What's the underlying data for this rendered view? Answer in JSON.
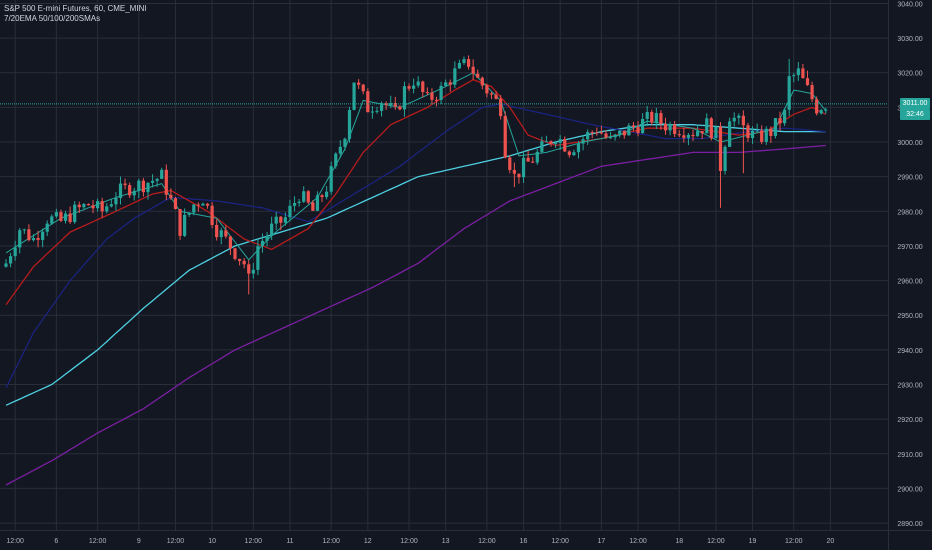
{
  "legend": {
    "title": "S&P 500 E-mini Futures, 60, CME_MINI",
    "indicators": "7/20EMA 50/100/200SMAs"
  },
  "price_tags": {
    "last": "3011.00",
    "countdown": "32:46"
  },
  "colors": {
    "background": "#131722",
    "grid": "#2a2e39",
    "up": "#26a69a",
    "down": "#ef5350",
    "ema7": "#26a69a",
    "ema20": "#b71c1c",
    "sma50": "#1a237e",
    "sma100": "#4dd0e1",
    "sma200": "#7b1fa2",
    "last_price_line": "#26a69a"
  },
  "chart_data": {
    "type": "candlestick",
    "title": "S&P 500 E-mini Futures, 60, CME_MINI",
    "indicators_label": "7/20EMA 50/100/200SMAs",
    "y_ticks": [
      2890,
      2900,
      2910,
      2920,
      2930,
      2940,
      2950,
      2960,
      2970,
      2980,
      2990,
      3000,
      3010,
      3020,
      3030,
      3040
    ],
    "y_tick_labels": [
      "2890.00",
      "2900.00",
      "2910.00",
      "2920.00",
      "2930.00",
      "2940.00",
      "2950.00",
      "2960.00",
      "2970.00",
      "2980.00",
      "2990.00",
      "3000.00",
      "3010.00",
      "3020.00",
      "3030.00",
      "3040.00"
    ],
    "ylim": [
      2888,
      3041
    ],
    "x_ticks": [
      {
        "i": 2,
        "label": "12:00"
      },
      {
        "i": 11,
        "label": "6"
      },
      {
        "i": 20,
        "label": "12:00"
      },
      {
        "i": 29,
        "label": "9"
      },
      {
        "i": 37,
        "label": "12:00"
      },
      {
        "i": 45,
        "label": "10"
      },
      {
        "i": 54,
        "label": "12:00"
      },
      {
        "i": 62,
        "label": "11"
      },
      {
        "i": 71,
        "label": "12:00"
      },
      {
        "i": 79,
        "label": "12"
      },
      {
        "i": 88,
        "label": "12:00"
      },
      {
        "i": 96,
        "label": "13"
      },
      {
        "i": 105,
        "label": "12:00"
      },
      {
        "i": 113,
        "label": "16"
      },
      {
        "i": 121,
        "label": "12:00"
      },
      {
        "i": 130,
        "label": "17"
      },
      {
        "i": 138,
        "label": "12:00"
      },
      {
        "i": 147,
        "label": "18"
      },
      {
        "i": 155,
        "label": "12:00"
      },
      {
        "i": 163,
        "label": "19"
      },
      {
        "i": 172,
        "label": "12:00"
      },
      {
        "i": 180,
        "label": "20"
      }
    ],
    "last_price": 3011.0,
    "candle_anchors": [
      [
        0,
        2965
      ],
      [
        3,
        2975
      ],
      [
        6,
        2972
      ],
      [
        9,
        2978
      ],
      [
        12,
        2977
      ],
      [
        15,
        2980
      ],
      [
        18,
        2982
      ],
      [
        21,
        2980
      ],
      [
        24,
        2985
      ],
      [
        27,
        2987
      ],
      [
        30,
        2988
      ],
      [
        34,
        2990
      ],
      [
        36,
        2983
      ],
      [
        38,
        2975
      ],
      [
        41,
        2982
      ],
      [
        43,
        2984
      ],
      [
        46,
        2975
      ],
      [
        49,
        2970
      ],
      [
        52,
        2965
      ],
      [
        53,
        2960
      ],
      [
        55,
        2970
      ],
      [
        58,
        2975
      ],
      [
        61,
        2978
      ],
      [
        64,
        2985
      ],
      [
        67,
        2980
      ],
      [
        70,
        2987
      ],
      [
        72,
        2995
      ],
      [
        74,
        3003
      ],
      [
        76,
        3018
      ],
      [
        79,
        3010
      ],
      [
        82,
        3012
      ],
      [
        85,
        3008
      ],
      [
        87,
        3015
      ],
      [
        89,
        3018
      ],
      [
        92,
        3012
      ],
      [
        95,
        3015
      ],
      [
        98,
        3020
      ],
      [
        101,
        3023
      ],
      [
        103,
        3018
      ],
      [
        105,
        3015
      ],
      [
        108,
        3010
      ],
      [
        109,
        2998
      ],
      [
        111,
        2990
      ],
      [
        113,
        2993
      ],
      [
        115,
        2995
      ],
      [
        117,
        2998
      ],
      [
        120,
        3002
      ],
      [
        123,
        2998
      ],
      [
        126,
        3001
      ],
      [
        129,
        3004
      ],
      [
        132,
        3000
      ],
      [
        135,
        3003
      ],
      [
        138,
        3005
      ],
      [
        141,
        3007
      ],
      [
        144,
        3005
      ],
      [
        147,
        3004
      ],
      [
        150,
        3003
      ],
      [
        153,
        3005
      ],
      [
        155,
        3002
      ],
      [
        156,
        2993
      ],
      [
        158,
        3008
      ],
      [
        161,
        3004
      ],
      [
        164,
        3001
      ],
      [
        167,
        3003
      ],
      [
        170,
        3008
      ],
      [
        171,
        3018
      ],
      [
        173,
        3020
      ],
      [
        175,
        3015
      ],
      [
        177,
        3010
      ],
      [
        179,
        3011
      ]
    ],
    "candles": [],
    "ema7_anchors": [
      [
        0,
        2968
      ],
      [
        12,
        2978
      ],
      [
        24,
        2984
      ],
      [
        34,
        2988
      ],
      [
        38,
        2980
      ],
      [
        46,
        2978
      ],
      [
        53,
        2966
      ],
      [
        58,
        2973
      ],
      [
        68,
        2984
      ],
      [
        74,
        2998
      ],
      [
        78,
        3012
      ],
      [
        86,
        3010
      ],
      [
        96,
        3016
      ],
      [
        102,
        3020
      ],
      [
        108,
        3012
      ],
      [
        112,
        2996
      ],
      [
        118,
        2997
      ],
      [
        126,
        3000
      ],
      [
        134,
        3002
      ],
      [
        140,
        3006
      ],
      [
        150,
        3004
      ],
      [
        156,
        3000
      ],
      [
        162,
        3002
      ],
      [
        168,
        3004
      ],
      [
        172,
        3015
      ],
      [
        176,
        3014
      ],
      [
        179,
        3009
      ]
    ],
    "ema20_anchors": [
      [
        0,
        2953
      ],
      [
        6,
        2964
      ],
      [
        14,
        2974
      ],
      [
        24,
        2980
      ],
      [
        32,
        2985
      ],
      [
        36,
        2986
      ],
      [
        44,
        2980
      ],
      [
        52,
        2972
      ],
      [
        58,
        2969
      ],
      [
        66,
        2975
      ],
      [
        72,
        2985
      ],
      [
        78,
        2997
      ],
      [
        84,
        3005
      ],
      [
        92,
        3010
      ],
      [
        98,
        3015
      ],
      [
        102,
        3018
      ],
      [
        106,
        3016
      ],
      [
        110,
        3010
      ],
      [
        114,
        3002
      ],
      [
        120,
        2999
      ],
      [
        130,
        3001
      ],
      [
        140,
        3004
      ],
      [
        150,
        3004
      ],
      [
        160,
        3002
      ],
      [
        166,
        3003
      ],
      [
        172,
        3008
      ],
      [
        176,
        3010
      ],
      [
        179,
        3008
      ]
    ],
    "sma50_anchors": [
      [
        0,
        2929
      ],
      [
        6,
        2945
      ],
      [
        14,
        2960
      ],
      [
        22,
        2972
      ],
      [
        28,
        2978
      ],
      [
        36,
        2984
      ],
      [
        46,
        2983
      ],
      [
        56,
        2981
      ],
      [
        66,
        2977
      ],
      [
        76,
        2985
      ],
      [
        86,
        2993
      ],
      [
        96,
        3003
      ],
      [
        104,
        3010
      ],
      [
        108,
        3011
      ],
      [
        118,
        3008
      ],
      [
        128,
        3005
      ],
      [
        136,
        3003
      ],
      [
        144,
        3001
      ],
      [
        152,
        3001
      ],
      [
        162,
        3003
      ],
      [
        170,
        3004
      ],
      [
        179,
        3003
      ]
    ],
    "sma100_anchors": [
      [
        0,
        2924
      ],
      [
        10,
        2930
      ],
      [
        20,
        2940
      ],
      [
        30,
        2952
      ],
      [
        40,
        2963
      ],
      [
        50,
        2970
      ],
      [
        60,
        2974
      ],
      [
        70,
        2978
      ],
      [
        80,
        2984
      ],
      [
        90,
        2990
      ],
      [
        100,
        2993
      ],
      [
        110,
        2996
      ],
      [
        120,
        3000
      ],
      [
        130,
        3003
      ],
      [
        140,
        3005
      ],
      [
        150,
        3005
      ],
      [
        160,
        3004
      ],
      [
        170,
        3003
      ],
      [
        179,
        3003
      ]
    ],
    "sma200_anchors": [
      [
        0,
        2901
      ],
      [
        10,
        2908
      ],
      [
        20,
        2916
      ],
      [
        30,
        2923
      ],
      [
        40,
        2932
      ],
      [
        50,
        2940
      ],
      [
        60,
        2946
      ],
      [
        70,
        2952
      ],
      [
        80,
        2958
      ],
      [
        90,
        2965
      ],
      [
        100,
        2975
      ],
      [
        110,
        2983
      ],
      [
        120,
        2988
      ],
      [
        130,
        2993
      ],
      [
        140,
        2995
      ],
      [
        150,
        2997
      ],
      [
        160,
        2997
      ],
      [
        170,
        2998
      ],
      [
        179,
        2999
      ]
    ]
  }
}
